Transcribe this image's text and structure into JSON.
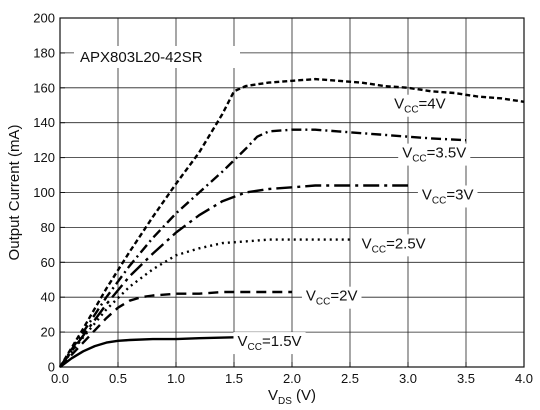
{
  "chart_data": {
    "type": "line",
    "title": "APX803L20-42SR",
    "xlabel_main": "V",
    "xlabel_sub": "DS",
    "xlabel_unit": " (V)",
    "ylabel": "Output Current (mA)",
    "xlim": [
      0.0,
      4.0
    ],
    "ylim": [
      0,
      200
    ],
    "x_ticks": [
      0.0,
      0.5,
      1.0,
      1.5,
      2.0,
      2.5,
      3.0,
      3.5,
      4.0
    ],
    "x_tick_labels": [
      "0.0",
      "0.5",
      "1.0",
      "1.5",
      "2.0",
      "2.5",
      "3.0",
      "3.5",
      "4.0"
    ],
    "y_ticks": [
      0,
      20,
      40,
      60,
      80,
      100,
      120,
      140,
      160,
      180,
      200
    ],
    "y_tick_labels": [
      "0",
      "20",
      "40",
      "60",
      "80",
      "100",
      "120",
      "140",
      "160",
      "180",
      "200"
    ],
    "grid": true,
    "series": [
      {
        "label_main": "V",
        "label_sub": "CC",
        "label_value": "=4V",
        "dash": "short-dash",
        "label_anchor": [
          2.88,
          148
        ],
        "x": [
          0.0,
          0.2,
          0.4,
          0.6,
          0.8,
          1.0,
          1.2,
          1.4,
          1.5,
          1.6,
          1.7,
          1.8,
          2.0,
          2.2,
          2.4,
          2.6,
          2.8,
          3.0,
          3.2,
          3.4,
          3.6,
          3.8,
          4.0
        ],
        "y": [
          0,
          22,
          45,
          66,
          86,
          105,
          123,
          145,
          158,
          161,
          162,
          163,
          164,
          165,
          164,
          163,
          161,
          160,
          158,
          157,
          155,
          154,
          152
        ]
      },
      {
        "label_main": "V",
        "label_sub": "CC",
        "label_value": "=3.5V",
        "dash": "dash-dot",
        "label_anchor": [
          2.95,
          120
        ],
        "x": [
          0.0,
          0.2,
          0.4,
          0.6,
          0.8,
          1.0,
          1.2,
          1.4,
          1.6,
          1.7,
          1.8,
          2.0,
          2.2,
          2.4,
          2.6,
          2.8,
          3.0,
          3.2,
          3.5
        ],
        "y": [
          0,
          20,
          40,
          58,
          74,
          88,
          100,
          112,
          125,
          132,
          135,
          136,
          136,
          135,
          134,
          133,
          132,
          131,
          130
        ]
      },
      {
        "label_main": "V",
        "label_sub": "CC",
        "label_value": "=3V",
        "dash": "long-dash-dot",
        "label_anchor": [
          3.12,
          96
        ],
        "x": [
          0.0,
          0.2,
          0.4,
          0.6,
          0.8,
          1.0,
          1.2,
          1.4,
          1.6,
          1.8,
          2.0,
          2.2,
          2.4,
          2.6,
          2.8,
          3.0
        ],
        "y": [
          0,
          18,
          36,
          52,
          65,
          77,
          87,
          95,
          100,
          102,
          103,
          104,
          104,
          104,
          104,
          104
        ]
      },
      {
        "label_main": "V",
        "label_sub": "CC",
        "label_value": "=2.5V",
        "dash": "dot",
        "label_anchor": [
          2.6,
          68
        ],
        "x": [
          0.0,
          0.2,
          0.4,
          0.6,
          0.8,
          1.0,
          1.2,
          1.4,
          1.6,
          1.8,
          2.0,
          2.2,
          2.5
        ],
        "y": [
          0,
          17,
          33,
          46,
          56,
          64,
          68,
          71,
          72,
          73,
          73,
          73,
          73
        ]
      },
      {
        "label_main": "V",
        "label_sub": "CC",
        "label_value": "=2V",
        "dash": "long-dash",
        "label_anchor": [
          2.12,
          38
        ],
        "x": [
          0.0,
          0.2,
          0.4,
          0.5,
          0.6,
          0.7,
          0.8,
          1.0,
          1.2,
          1.4,
          1.6,
          1.8,
          2.0
        ],
        "y": [
          0,
          14,
          28,
          34,
          38,
          40,
          41,
          42,
          42,
          43,
          43,
          43,
          43
        ]
      },
      {
        "label_main": "V",
        "label_sub": "CC",
        "label_value": "=1.5V",
        "dash": "solid",
        "label_anchor": [
          1.53,
          12
        ],
        "x": [
          0.0,
          0.1,
          0.2,
          0.3,
          0.4,
          0.5,
          0.6,
          0.8,
          1.0,
          1.2,
          1.5
        ],
        "y": [
          0,
          5,
          9,
          12,
          14,
          15,
          15.5,
          16,
          16,
          16.5,
          17
        ]
      }
    ]
  }
}
